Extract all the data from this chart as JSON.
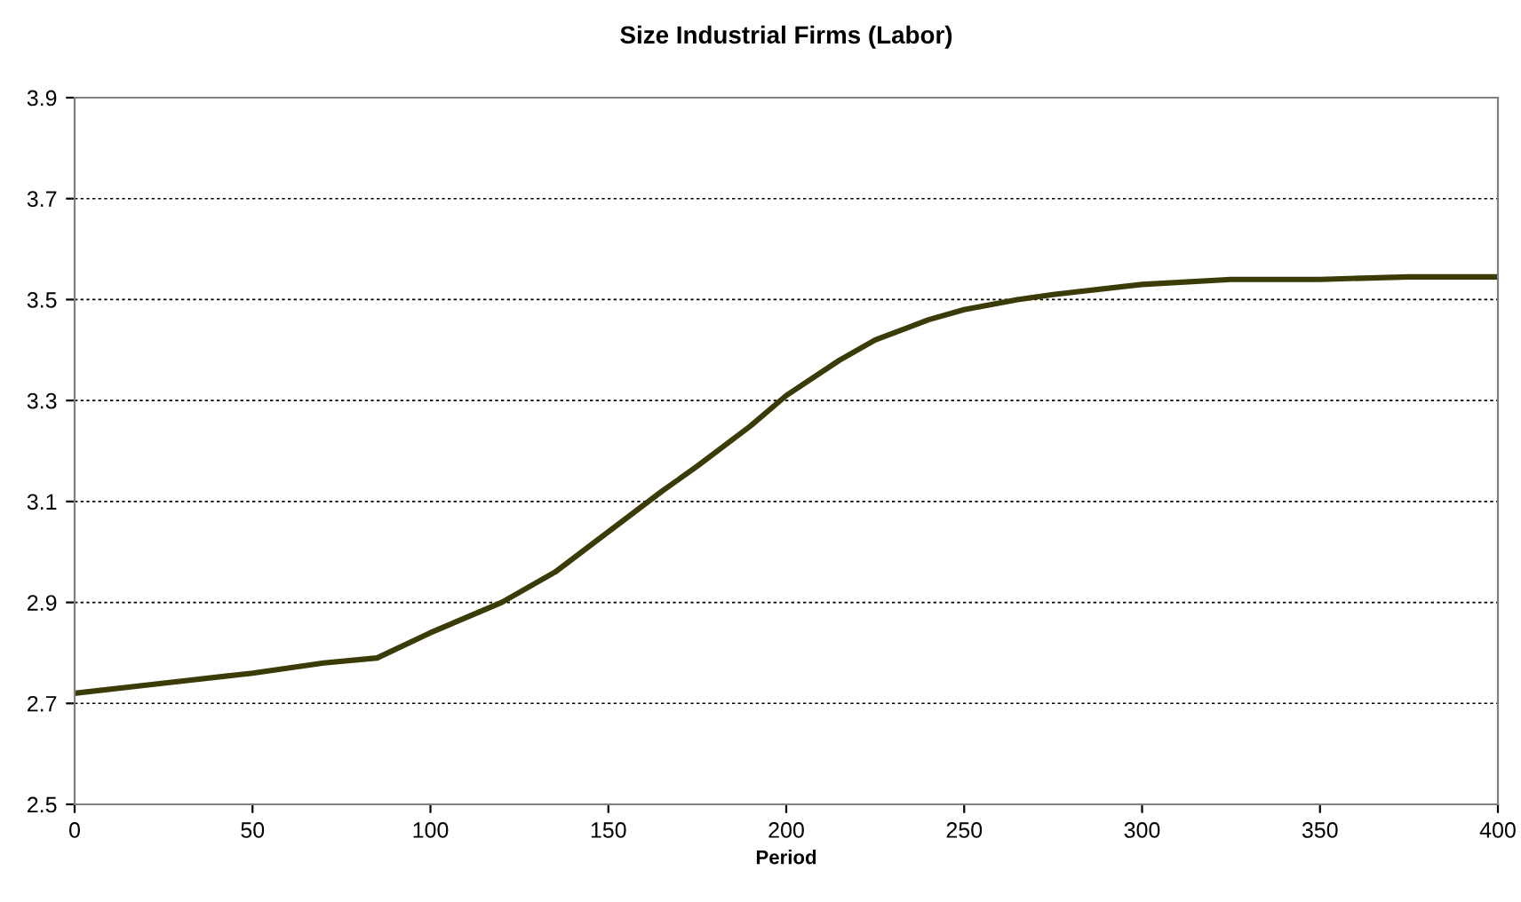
{
  "chart_data": {
    "type": "line",
    "title": "Size Industrial Firms (Labor)",
    "xlabel": "Period",
    "x": [
      0,
      25,
      50,
      70,
      85,
      100,
      120,
      135,
      150,
      165,
      175,
      190,
      200,
      215,
      225,
      240,
      250,
      265,
      275,
      300,
      325,
      350,
      375,
      400
    ],
    "series": [
      {
        "color": "#3b3b08",
        "values": [
          2.72,
          2.74,
          2.76,
          2.78,
          2.79,
          2.84,
          2.9,
          2.96,
          3.04,
          3.12,
          3.17,
          3.25,
          3.31,
          3.38,
          3.42,
          3.46,
          3.48,
          3.5,
          3.51,
          3.53,
          3.54,
          3.54,
          3.545,
          3.545
        ]
      }
    ],
    "xlim": [
      0,
      400
    ],
    "xticks": [
      0,
      50,
      100,
      150,
      200,
      250,
      300,
      350,
      400
    ],
    "ylim": [
      2.5,
      3.9
    ],
    "yticks": [
      2.5,
      2.7,
      2.9,
      3.1,
      3.3,
      3.5,
      3.7,
      3.9
    ],
    "grid": "y",
    "marker": "none",
    "line_style": "solid",
    "legend": false
  }
}
